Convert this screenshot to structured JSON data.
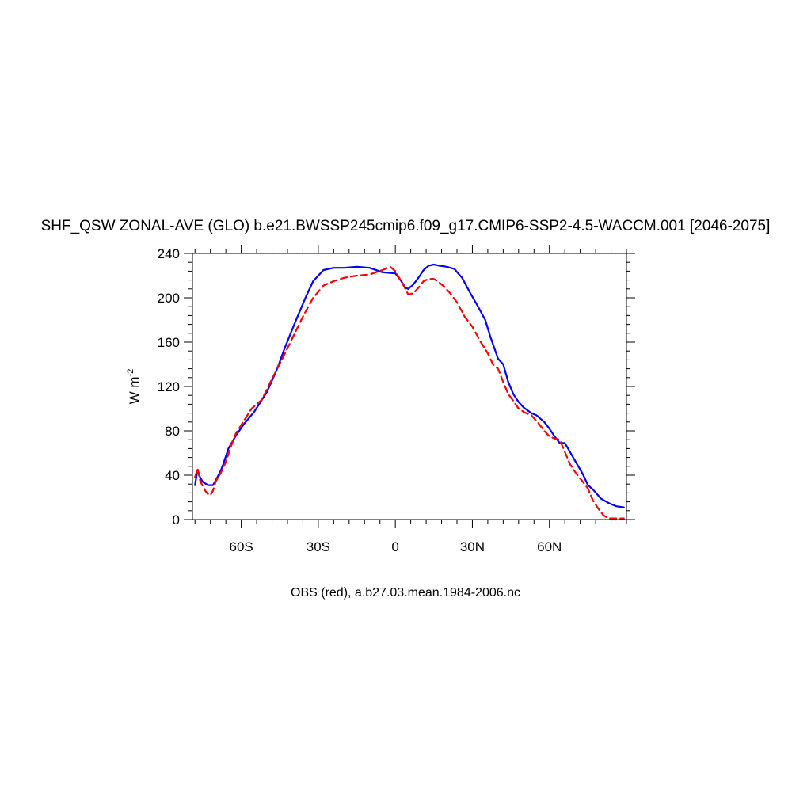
{
  "chart_data": {
    "type": "line",
    "title": "SHF_QSW ZONAL-AVE (GLO) b.e21.BWSSP245cmip6.f09_g17.CMIP6-SSP2-4.5-WACCM.001 [2046-2075]",
    "ylabel": "W m",
    "ylabel_exponent": "-2",
    "xlabel": "",
    "footer": "OBS (red), a.b27.03.mean.1984-2006.nc",
    "xlim": [
      -79,
      90
    ],
    "ylim": [
      0,
      240
    ],
    "x_ticks": [
      {
        "value": -60,
        "label": "60S"
      },
      {
        "value": -30,
        "label": "30S"
      },
      {
        "value": 0,
        "label": "0"
      },
      {
        "value": 30,
        "label": "30N"
      },
      {
        "value": 60,
        "label": "60N"
      }
    ],
    "y_ticks": [
      0,
      40,
      80,
      120,
      160,
      200,
      240
    ],
    "grid": false,
    "series": [
      {
        "color": "#0000ff",
        "dash": "solid",
        "x": [
          -78,
          -77,
          -76,
          -75,
          -73,
          -71,
          -70,
          -68,
          -67,
          -65,
          -62,
          -59,
          -55,
          -50,
          -46,
          -43,
          -39,
          -35,
          -32,
          -28,
          -24,
          -20,
          -15,
          -10,
          -5,
          0,
          2,
          4,
          5,
          7,
          9,
          11,
          13,
          15,
          17,
          20,
          23,
          26,
          29,
          32,
          35,
          37,
          40,
          42,
          44,
          46,
          48,
          50,
          53,
          55,
          58,
          60,
          62,
          64,
          66,
          68,
          70,
          73,
          75,
          77,
          80,
          83,
          86,
          89
        ],
        "y": [
          31,
          45,
          38,
          34,
          31,
          31,
          35,
          44,
          50,
          64,
          76,
          86,
          97,
          115,
          136,
          155,
          178,
          200,
          215,
          225,
          227,
          227,
          228,
          227,
          223,
          222,
          216,
          209,
          208,
          212,
          218,
          225,
          229,
          230,
          229,
          228,
          226,
          218,
          205,
          193,
          180,
          165,
          145,
          140,
          124,
          113,
          106,
          101,
          96,
          94,
          88,
          82,
          75,
          69,
          69,
          61,
          53,
          41,
          31,
          27,
          19,
          15,
          12,
          11
        ]
      },
      {
        "color": "#ff0000",
        "dash": "dashed",
        "x": [
          -78,
          -77,
          -76,
          -75,
          -74,
          -73,
          -72,
          -71,
          -70,
          -68,
          -66,
          -64,
          -62,
          -59,
          -56,
          -52,
          -48,
          -44,
          -40,
          -36,
          -32,
          -28,
          -24,
          -20,
          -15,
          -10,
          -5,
          -2,
          0,
          1,
          3,
          5,
          7,
          9,
          11,
          13,
          15,
          17,
          19,
          21,
          24,
          27,
          30,
          33,
          36,
          38,
          40,
          42,
          44,
          46,
          48,
          50,
          53,
          56,
          58,
          60,
          62,
          64,
          66,
          68,
          70,
          73,
          75,
          77,
          79,
          81,
          83,
          85,
          87,
          89
        ],
        "y": [
          38,
          46,
          35,
          30,
          26,
          23,
          22,
          26,
          34,
          42,
          52,
          66,
          78,
          89,
          100,
          108,
          127,
          145,
          164,
          183,
          200,
          211,
          215,
          218,
          220,
          221,
          225,
          228,
          224,
          220,
          212,
          203,
          204,
          209,
          215,
          217,
          217,
          214,
          210,
          205,
          196,
          183,
          174,
          161,
          150,
          140,
          136,
          124,
          113,
          107,
          100,
          97,
          94,
          86,
          80,
          75,
          73,
          72,
          61,
          50,
          43,
          34,
          28,
          17,
          10,
          4,
          1,
          1,
          1,
          1
        ]
      }
    ]
  }
}
